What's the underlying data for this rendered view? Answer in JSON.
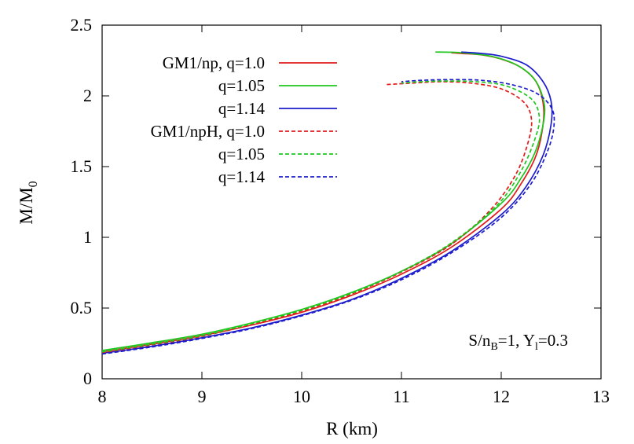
{
  "chart_data": {
    "type": "line",
    "title": "",
    "xlabel": "R (km)",
    "ylabel": "M/M0",
    "ylabel_main": "M/M",
    "ylabel_sub": "0",
    "xlim": [
      8,
      13
    ],
    "ylim": [
      0,
      2.5
    ],
    "xticks": [
      "8",
      "9",
      "10",
      "11",
      "12",
      "13"
    ],
    "yticks": [
      "0",
      "0.5",
      "1",
      "1.5",
      "2",
      "2.5"
    ],
    "grid": false,
    "legend_position": "top-left",
    "annotation": {
      "parts": [
        "S/n",
        "B",
        "=1, Y",
        "l",
        "=0.3"
      ],
      "full": "S/nB=1, Yl=0.3"
    },
    "series": [
      {
        "name": "GM1/np, q=1.0",
        "color": "#e31a1c",
        "dash": "solid",
        "points": [
          [
            8.0,
            0.19
          ],
          [
            8.5,
            0.245
          ],
          [
            9.0,
            0.305
          ],
          [
            9.5,
            0.38
          ],
          [
            10.0,
            0.47
          ],
          [
            10.5,
            0.59
          ],
          [
            11.0,
            0.74
          ],
          [
            11.5,
            0.93
          ],
          [
            12.0,
            1.2
          ],
          [
            12.2,
            1.38
          ],
          [
            12.35,
            1.58
          ],
          [
            12.42,
            1.8
          ],
          [
            12.42,
            1.95
          ],
          [
            12.35,
            2.1
          ],
          [
            12.2,
            2.2
          ],
          [
            12.0,
            2.26
          ],
          [
            11.8,
            2.29
          ],
          [
            11.6,
            2.3
          ],
          [
            11.5,
            2.305
          ]
        ]
      },
      {
        "name": "q=1.05",
        "color": "#1ec81e",
        "dash": "solid",
        "points": [
          [
            8.0,
            0.2
          ],
          [
            8.5,
            0.255
          ],
          [
            9.0,
            0.315
          ],
          [
            9.5,
            0.395
          ],
          [
            10.0,
            0.49
          ],
          [
            10.5,
            0.61
          ],
          [
            11.0,
            0.76
          ],
          [
            11.5,
            0.955
          ],
          [
            12.0,
            1.24
          ],
          [
            12.2,
            1.42
          ],
          [
            12.35,
            1.62
          ],
          [
            12.43,
            1.84
          ],
          [
            12.42,
            1.98
          ],
          [
            12.33,
            2.12
          ],
          [
            12.15,
            2.22
          ],
          [
            11.9,
            2.28
          ],
          [
            11.6,
            2.305
          ],
          [
            11.34,
            2.31
          ]
        ]
      },
      {
        "name": "q=1.14",
        "color": "#1c1ccc",
        "dash": "solid",
        "points": [
          [
            8.0,
            0.18
          ],
          [
            8.5,
            0.23
          ],
          [
            9.0,
            0.29
          ],
          [
            9.5,
            0.36
          ],
          [
            10.0,
            0.45
          ],
          [
            10.5,
            0.56
          ],
          [
            11.0,
            0.71
          ],
          [
            11.5,
            0.9
          ],
          [
            12.0,
            1.16
          ],
          [
            12.25,
            1.36
          ],
          [
            12.42,
            1.58
          ],
          [
            12.5,
            1.8
          ],
          [
            12.5,
            1.96
          ],
          [
            12.42,
            2.1
          ],
          [
            12.25,
            2.22
          ],
          [
            12.0,
            2.28
          ],
          [
            11.8,
            2.3
          ],
          [
            11.6,
            2.31
          ]
        ]
      },
      {
        "name": "GM1/npH, q=1.0",
        "color": "#e31a1c",
        "dash": "dashed",
        "points": [
          [
            8.0,
            0.185
          ],
          [
            8.5,
            0.24
          ],
          [
            9.0,
            0.3
          ],
          [
            9.5,
            0.385
          ],
          [
            10.0,
            0.48
          ],
          [
            10.5,
            0.6
          ],
          [
            11.0,
            0.755
          ],
          [
            11.5,
            0.95
          ],
          [
            11.9,
            1.2
          ],
          [
            12.15,
            1.45
          ],
          [
            12.28,
            1.7
          ],
          [
            12.3,
            1.85
          ],
          [
            12.22,
            1.96
          ],
          [
            12.0,
            2.05
          ],
          [
            11.7,
            2.09
          ],
          [
            11.4,
            2.1
          ],
          [
            11.1,
            2.09
          ],
          [
            10.85,
            2.08
          ]
        ]
      },
      {
        "name": "q=1.05",
        "color": "#1ec81e",
        "dash": "dashed",
        "points": [
          [
            8.0,
            0.19
          ],
          [
            8.5,
            0.245
          ],
          [
            9.0,
            0.305
          ],
          [
            9.5,
            0.39
          ],
          [
            10.0,
            0.485
          ],
          [
            10.5,
            0.605
          ],
          [
            11.0,
            0.76
          ],
          [
            11.5,
            0.96
          ],
          [
            11.95,
            1.22
          ],
          [
            12.2,
            1.47
          ],
          [
            12.35,
            1.72
          ],
          [
            12.38,
            1.86
          ],
          [
            12.3,
            1.98
          ],
          [
            12.05,
            2.07
          ],
          [
            11.75,
            2.1
          ],
          [
            11.45,
            2.105
          ],
          [
            11.2,
            2.1
          ],
          [
            11.0,
            2.09
          ]
        ]
      },
      {
        "name": "q=1.14",
        "color": "#1c1ccc",
        "dash": "dashed",
        "points": [
          [
            8.0,
            0.175
          ],
          [
            8.5,
            0.225
          ],
          [
            9.0,
            0.285
          ],
          [
            9.5,
            0.355
          ],
          [
            10.0,
            0.445
          ],
          [
            10.5,
            0.555
          ],
          [
            11.0,
            0.7
          ],
          [
            11.5,
            0.89
          ],
          [
            12.0,
            1.14
          ],
          [
            12.3,
            1.38
          ],
          [
            12.47,
            1.62
          ],
          [
            12.53,
            1.8
          ],
          [
            12.5,
            1.92
          ],
          [
            12.35,
            2.02
          ],
          [
            12.1,
            2.08
          ],
          [
            11.8,
            2.11
          ],
          [
            11.5,
            2.115
          ],
          [
            11.2,
            2.11
          ],
          [
            11.0,
            2.1
          ]
        ]
      }
    ]
  }
}
